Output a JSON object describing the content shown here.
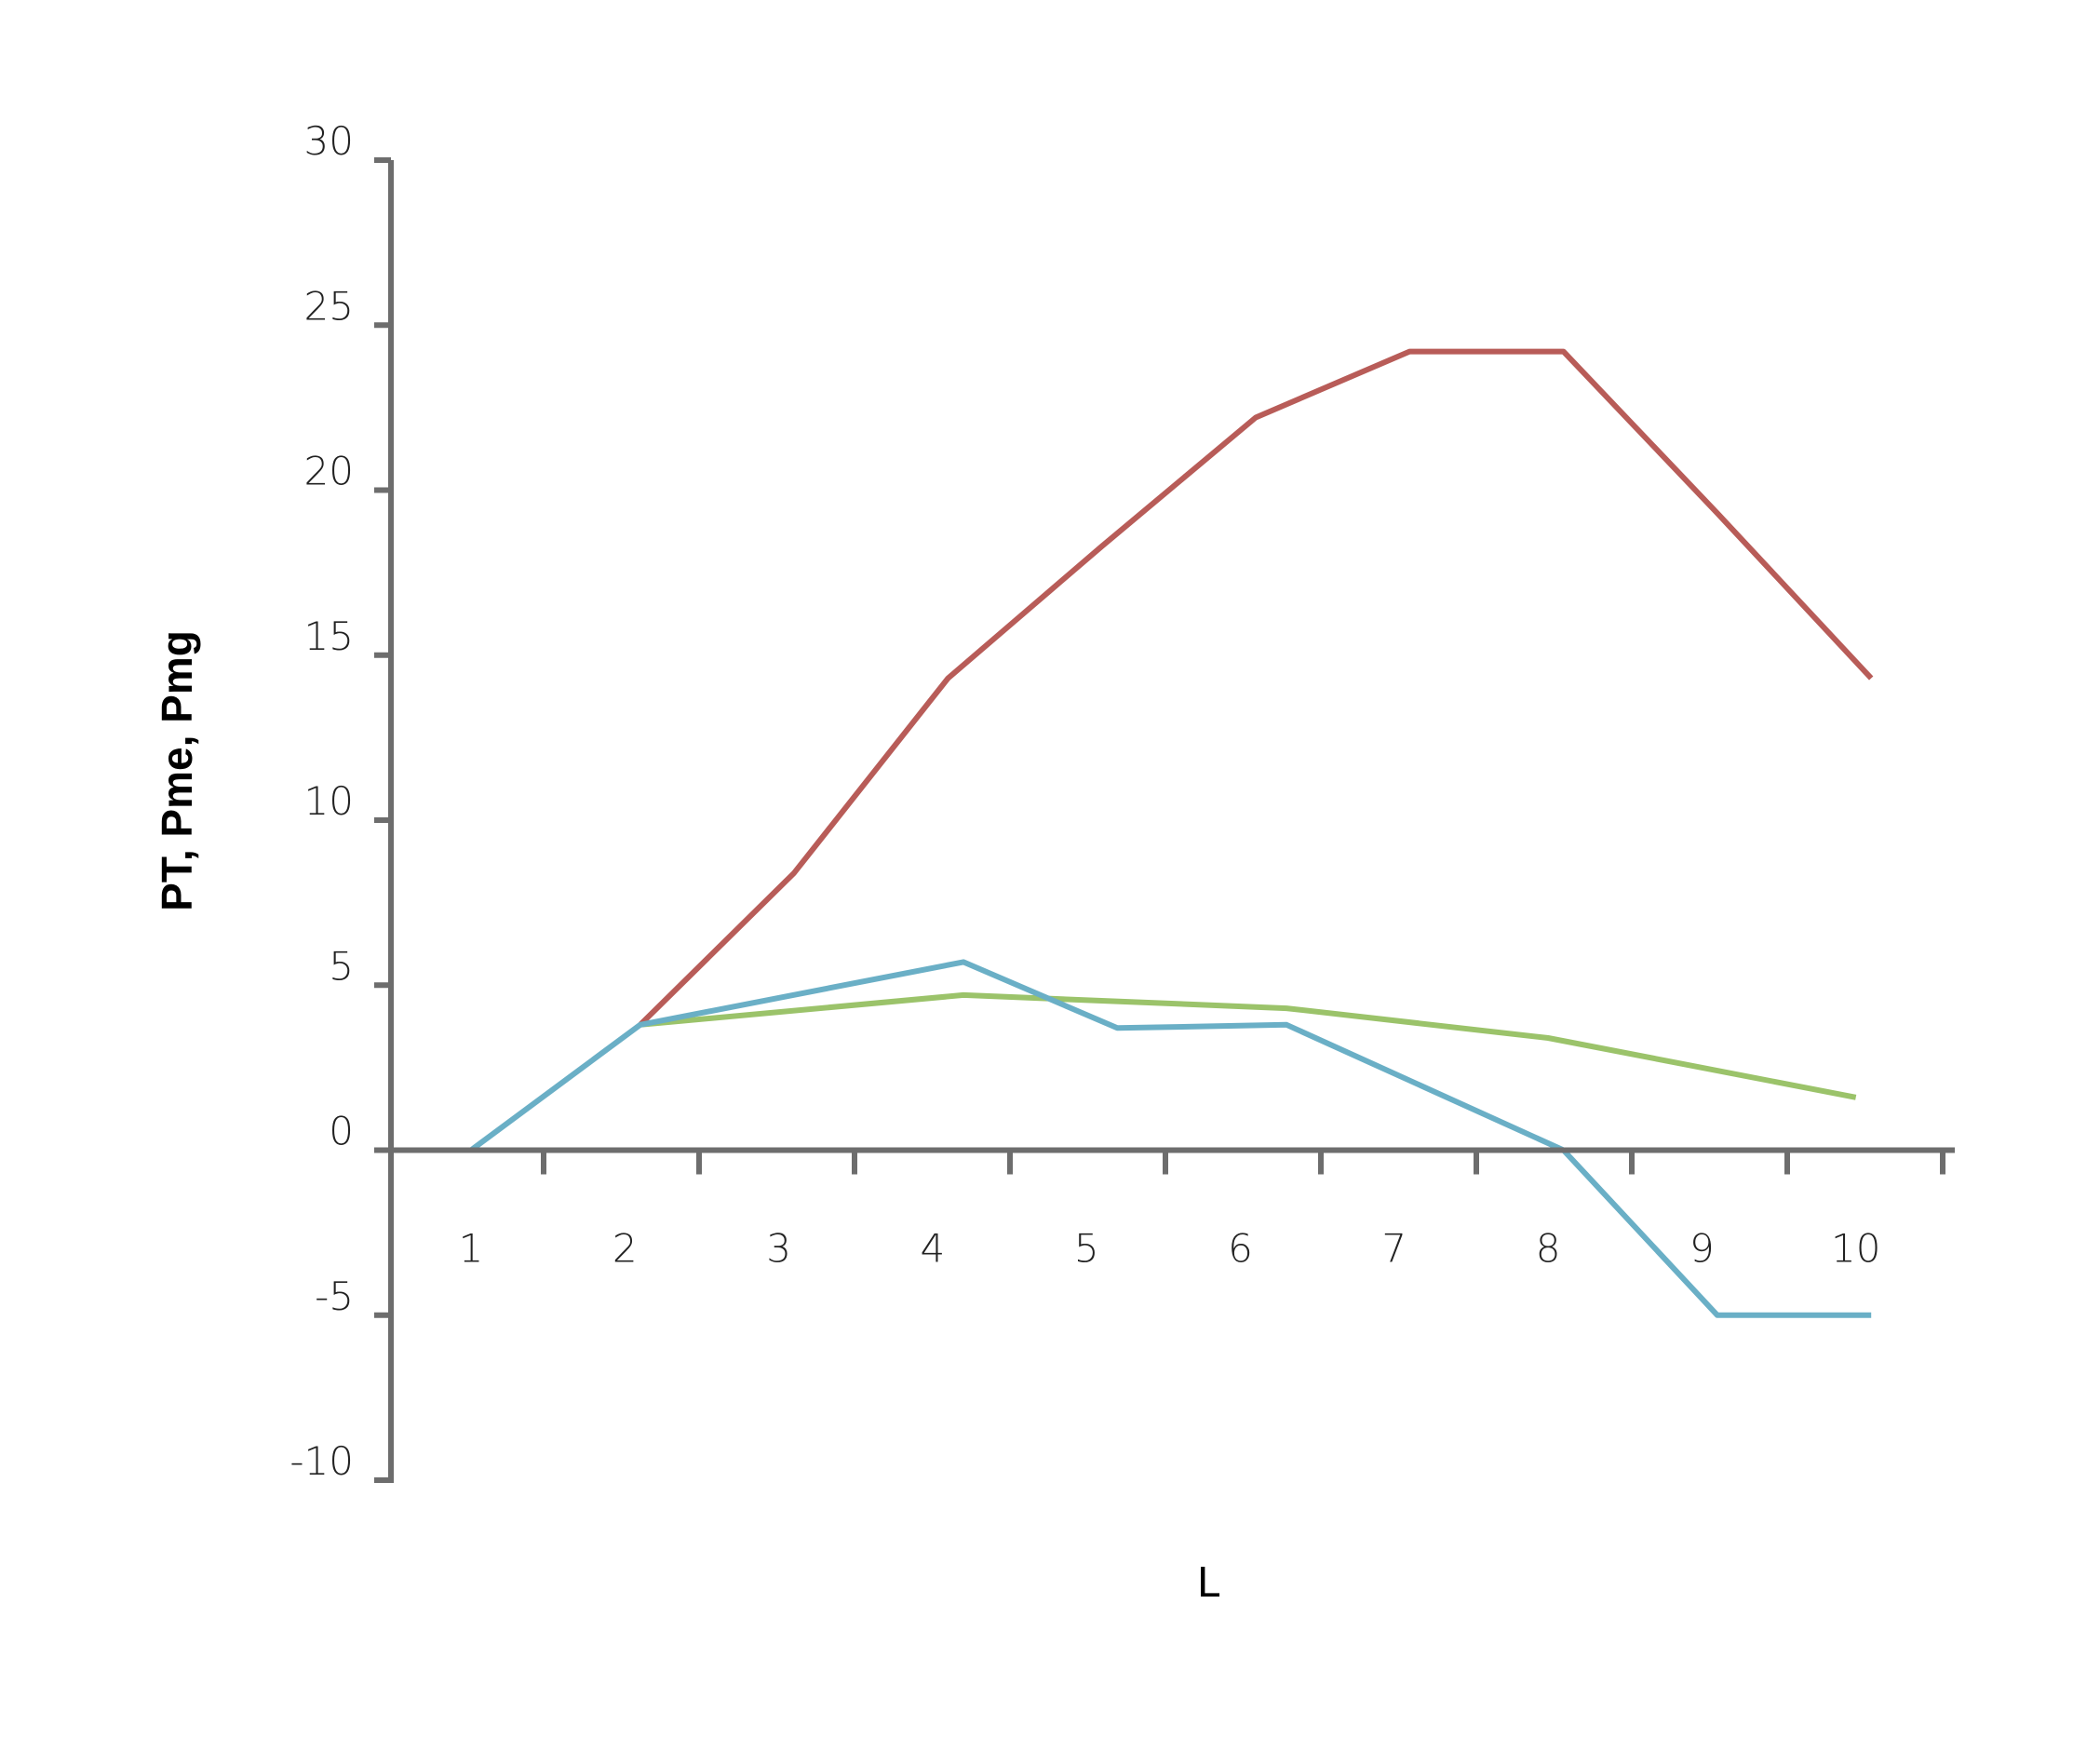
{
  "chart_data": {
    "type": "line",
    "title": "",
    "xlabel": "L",
    "ylabel": "PT, Pme, Pmg",
    "ylim": [
      -10,
      30
    ],
    "yticks": [
      30,
      25,
      20,
      15,
      10,
      5,
      0,
      -5,
      -10
    ],
    "ytick_labels": [
      "30",
      "25",
      "20",
      "15",
      "10",
      "5",
      "0",
      "-5",
      "-10"
    ],
    "categories": [
      "1",
      "2",
      "3",
      "4",
      "5",
      "6",
      "7",
      "8",
      "9",
      "10"
    ],
    "grid": false,
    "legend": "none",
    "series": [
      {
        "color": "#b85c58",
        "x": [
          2.1,
          3.1,
          4.1,
          5.1,
          6.1,
          7.1,
          8.1,
          9.1,
          10.1
        ],
        "values": [
          3.8,
          8.4,
          14.3,
          18.3,
          22.2,
          24.2,
          24.2,
          19.3,
          14.3
        ]
      },
      {
        "color": "#9bc36a",
        "x": [
          2.1,
          4.2,
          6.3,
          8.0,
          10.0
        ],
        "values": [
          3.8,
          4.7,
          4.3,
          3.4,
          1.6
        ]
      },
      {
        "color": "#6aafc6",
        "x": [
          1.0,
          2.1,
          4.2,
          5.2,
          6.3,
          8.1,
          9.1,
          10.1
        ],
        "values": [
          0,
          3.8,
          5.7,
          3.7,
          3.8,
          0,
          -5.0,
          -5.0
        ]
      }
    ]
  }
}
